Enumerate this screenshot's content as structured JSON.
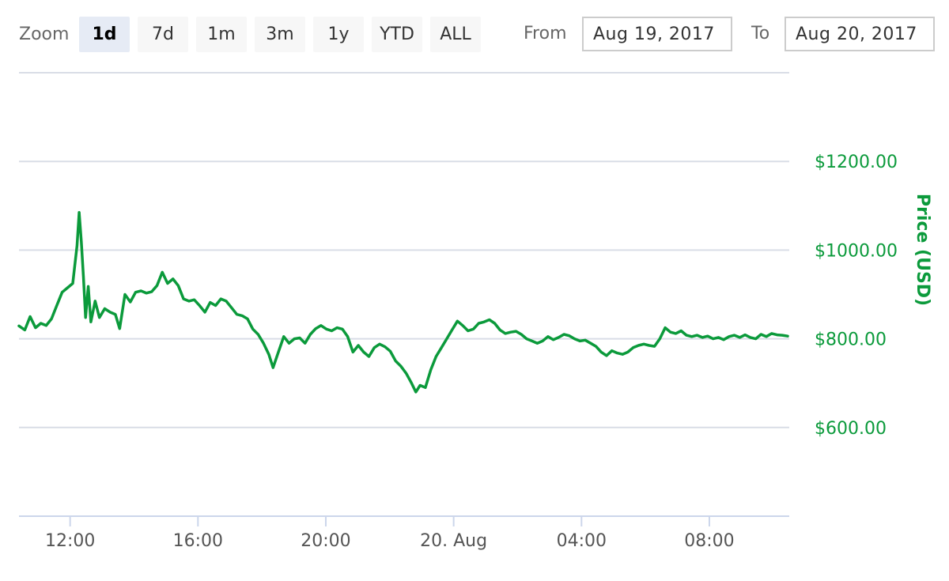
{
  "zoom": {
    "label": "Zoom",
    "buttons": [
      "1d",
      "7d",
      "1m",
      "3m",
      "1y",
      "YTD",
      "ALL"
    ],
    "active": "1d"
  },
  "range": {
    "from_label": "From",
    "from_value": "Aug 19, 2017",
    "to_label": "To",
    "to_value": "Aug 20, 2017"
  },
  "colors": {
    "line": "#0b9a3b",
    "axis_label": "#0b9a3b",
    "grid": "#d9dde6",
    "x_tick_label": "#555555",
    "active_button": "#e6ebf5"
  },
  "chart_data": {
    "type": "line",
    "title": "",
    "xlabel": "",
    "ylabel": "Price (USD)",
    "y_axis_side": "right",
    "ylim": [
      400,
      1400
    ],
    "yticks": [
      600,
      800,
      1000,
      1200
    ],
    "ytick_labels": [
      "$600.00",
      "$800.00",
      "$1000.00",
      "$1200.00"
    ],
    "xlim": [
      "2017-08-19 10:24",
      "2017-08-20 10:30"
    ],
    "xticks": [
      "2017-08-19 12:00",
      "2017-08-19 16:00",
      "2017-08-19 20:00",
      "2017-08-20 00:00",
      "2017-08-20 04:00",
      "2017-08-20 08:00"
    ],
    "xtick_labels": [
      "12:00",
      "16:00",
      "20:00",
      "20. Aug",
      "04:00",
      "08:00"
    ],
    "grid": true,
    "series": [
      {
        "name": "Price",
        "points": [
          [
            "2017-08-19 10:24",
            829
          ],
          [
            "2017-08-19 10:35",
            820
          ],
          [
            "2017-08-19 10:45",
            850
          ],
          [
            "2017-08-19 10:55",
            825
          ],
          [
            "2017-08-19 11:05",
            835
          ],
          [
            "2017-08-19 11:15",
            830
          ],
          [
            "2017-08-19 11:25",
            845
          ],
          [
            "2017-08-19 11:35",
            875
          ],
          [
            "2017-08-19 11:45",
            905
          ],
          [
            "2017-08-19 11:55",
            915
          ],
          [
            "2017-08-19 12:05",
            925
          ],
          [
            "2017-08-19 12:13",
            1010
          ],
          [
            "2017-08-19 12:17",
            1085
          ],
          [
            "2017-08-19 12:21",
            1020
          ],
          [
            "2017-08-19 12:25",
            940
          ],
          [
            "2017-08-19 12:29",
            848
          ],
          [
            "2017-08-19 12:34",
            918
          ],
          [
            "2017-08-19 12:39",
            838
          ],
          [
            "2017-08-19 12:47",
            885
          ],
          [
            "2017-08-19 12:55",
            848
          ],
          [
            "2017-08-19 13:05",
            868
          ],
          [
            "2017-08-19 13:15",
            860
          ],
          [
            "2017-08-19 13:25",
            855
          ],
          [
            "2017-08-19 13:33",
            823
          ],
          [
            "2017-08-19 13:43",
            900
          ],
          [
            "2017-08-19 13:53",
            883
          ],
          [
            "2017-08-19 14:03",
            905
          ],
          [
            "2017-08-19 14:13",
            908
          ],
          [
            "2017-08-19 14:23",
            903
          ],
          [
            "2017-08-19 14:33",
            906
          ],
          [
            "2017-08-19 14:43",
            920
          ],
          [
            "2017-08-19 14:53",
            950
          ],
          [
            "2017-08-19 15:03",
            925
          ],
          [
            "2017-08-19 15:13",
            935
          ],
          [
            "2017-08-19 15:23",
            920
          ],
          [
            "2017-08-19 15:33",
            890
          ],
          [
            "2017-08-19 15:43",
            885
          ],
          [
            "2017-08-19 15:53",
            888
          ],
          [
            "2017-08-19 16:03",
            875
          ],
          [
            "2017-08-19 16:13",
            860
          ],
          [
            "2017-08-19 16:23",
            882
          ],
          [
            "2017-08-19 16:33",
            875
          ],
          [
            "2017-08-19 16:43",
            890
          ],
          [
            "2017-08-19 16:53",
            885
          ],
          [
            "2017-08-19 17:03",
            870
          ],
          [
            "2017-08-19 17:13",
            855
          ],
          [
            "2017-08-19 17:23",
            852
          ],
          [
            "2017-08-19 17:33",
            845
          ],
          [
            "2017-08-19 17:43",
            822
          ],
          [
            "2017-08-19 17:53",
            810
          ],
          [
            "2017-08-19 18:03",
            790
          ],
          [
            "2017-08-19 18:13",
            765
          ],
          [
            "2017-08-19 18:21",
            735
          ],
          [
            "2017-08-19 18:31",
            770
          ],
          [
            "2017-08-19 18:41",
            805
          ],
          [
            "2017-08-19 18:51",
            790
          ],
          [
            "2017-08-19 19:01",
            800
          ],
          [
            "2017-08-19 19:11",
            802
          ],
          [
            "2017-08-19 19:21",
            790
          ],
          [
            "2017-08-19 19:31",
            810
          ],
          [
            "2017-08-19 19:41",
            823
          ],
          [
            "2017-08-19 19:51",
            830
          ],
          [
            "2017-08-19 20:01",
            822
          ],
          [
            "2017-08-19 20:11",
            818
          ],
          [
            "2017-08-19 20:21",
            825
          ],
          [
            "2017-08-19 20:31",
            822
          ],
          [
            "2017-08-19 20:41",
            805
          ],
          [
            "2017-08-19 20:51",
            770
          ],
          [
            "2017-08-19 21:01",
            785
          ],
          [
            "2017-08-19 21:11",
            770
          ],
          [
            "2017-08-19 21:21",
            760
          ],
          [
            "2017-08-19 21:31",
            780
          ],
          [
            "2017-08-19 21:41",
            788
          ],
          [
            "2017-08-19 21:51",
            782
          ],
          [
            "2017-08-19 22:01",
            772
          ],
          [
            "2017-08-19 22:11",
            750
          ],
          [
            "2017-08-19 22:21",
            738
          ],
          [
            "2017-08-19 22:31",
            722
          ],
          [
            "2017-08-19 22:41",
            700
          ],
          [
            "2017-08-19 22:49",
            680
          ],
          [
            "2017-08-19 22:57",
            695
          ],
          [
            "2017-08-19 23:07",
            690
          ],
          [
            "2017-08-19 23:17",
            730
          ],
          [
            "2017-08-19 23:27",
            760
          ],
          [
            "2017-08-19 23:37",
            780
          ],
          [
            "2017-08-19 23:47",
            800
          ],
          [
            "2017-08-19 23:57",
            820
          ],
          [
            "2017-08-20 00:07",
            840
          ],
          [
            "2017-08-20 00:17",
            830
          ],
          [
            "2017-08-20 00:27",
            818
          ],
          [
            "2017-08-20 00:37",
            822
          ],
          [
            "2017-08-20 00:47",
            835
          ],
          [
            "2017-08-20 00:57",
            838
          ],
          [
            "2017-08-20 01:07",
            843
          ],
          [
            "2017-08-20 01:17",
            835
          ],
          [
            "2017-08-20 01:27",
            820
          ],
          [
            "2017-08-20 01:37",
            812
          ],
          [
            "2017-08-20 01:47",
            815
          ],
          [
            "2017-08-20 01:57",
            817
          ],
          [
            "2017-08-20 02:07",
            810
          ],
          [
            "2017-08-20 02:17",
            800
          ],
          [
            "2017-08-20 02:27",
            795
          ],
          [
            "2017-08-20 02:37",
            790
          ],
          [
            "2017-08-20 02:47",
            795
          ],
          [
            "2017-08-20 02:57",
            805
          ],
          [
            "2017-08-20 03:07",
            798
          ],
          [
            "2017-08-20 03:17",
            803
          ],
          [
            "2017-08-20 03:27",
            810
          ],
          [
            "2017-08-20 03:37",
            807
          ],
          [
            "2017-08-20 03:47",
            800
          ],
          [
            "2017-08-20 03:57",
            795
          ],
          [
            "2017-08-20 04:07",
            797
          ],
          [
            "2017-08-20 04:17",
            790
          ],
          [
            "2017-08-20 04:27",
            783
          ],
          [
            "2017-08-20 04:37",
            770
          ],
          [
            "2017-08-20 04:47",
            762
          ],
          [
            "2017-08-20 04:57",
            773
          ],
          [
            "2017-08-20 05:07",
            768
          ],
          [
            "2017-08-20 05:17",
            765
          ],
          [
            "2017-08-20 05:27",
            770
          ],
          [
            "2017-08-20 05:37",
            780
          ],
          [
            "2017-08-20 05:47",
            785
          ],
          [
            "2017-08-20 05:57",
            788
          ],
          [
            "2017-08-20 06:07",
            785
          ],
          [
            "2017-08-20 06:17",
            783
          ],
          [
            "2017-08-20 06:27",
            800
          ],
          [
            "2017-08-20 06:37",
            825
          ],
          [
            "2017-08-20 06:47",
            815
          ],
          [
            "2017-08-20 06:57",
            812
          ],
          [
            "2017-08-20 07:07",
            818
          ],
          [
            "2017-08-20 07:17",
            808
          ],
          [
            "2017-08-20 07:27",
            805
          ],
          [
            "2017-08-20 07:37",
            808
          ],
          [
            "2017-08-20 07:47",
            803
          ],
          [
            "2017-08-20 07:57",
            806
          ],
          [
            "2017-08-20 08:07",
            800
          ],
          [
            "2017-08-20 08:17",
            803
          ],
          [
            "2017-08-20 08:27",
            798
          ],
          [
            "2017-08-20 08:37",
            805
          ],
          [
            "2017-08-20 08:47",
            808
          ],
          [
            "2017-08-20 08:57",
            803
          ],
          [
            "2017-08-20 09:07",
            809
          ],
          [
            "2017-08-20 09:17",
            803
          ],
          [
            "2017-08-20 09:27",
            800
          ],
          [
            "2017-08-20 09:37",
            810
          ],
          [
            "2017-08-20 09:47",
            805
          ],
          [
            "2017-08-20 09:57",
            812
          ],
          [
            "2017-08-20 10:07",
            809
          ],
          [
            "2017-08-20 10:17",
            808
          ],
          [
            "2017-08-20 10:27",
            806
          ]
        ]
      }
    ]
  }
}
